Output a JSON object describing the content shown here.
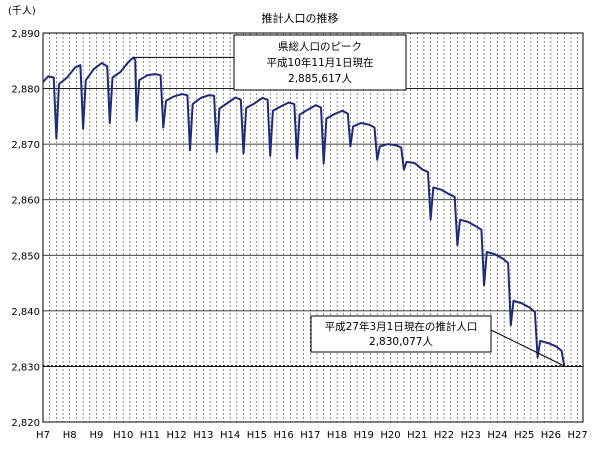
{
  "chart_data": {
    "type": "line",
    "title": "推計人口の推移",
    "ylabel": "(千人)",
    "xlabel": "",
    "ylim": [
      2820,
      2890
    ],
    "yticks": [
      2820,
      2830,
      2840,
      2850,
      2860,
      2870,
      2880,
      2890
    ],
    "ytick_labels": [
      "2,820",
      "2,830",
      "2,840",
      "2,850",
      "2,860",
      "2,870",
      "2,880",
      "2,890"
    ],
    "xtick_labels": [
      "H7",
      "H8",
      "H9",
      "H10",
      "H11",
      "H12",
      "H13",
      "H14",
      "H15",
      "H16",
      "H17",
      "H18",
      "H19",
      "H20",
      "H21",
      "H22",
      "H23",
      "H24",
      "H25",
      "H26",
      "H27"
    ],
    "grid": true,
    "line_color": "#1f2a7a",
    "reference_line": {
      "value": 2830.077,
      "style": "dotted"
    },
    "series": [
      {
        "name": "",
        "points": [
          [
            7.0,
            2881.2
          ],
          [
            7.2,
            2882.2
          ],
          [
            7.4,
            2882.0
          ],
          [
            7.5,
            2871.0
          ],
          [
            7.6,
            2880.8
          ],
          [
            7.9,
            2882.0
          ],
          [
            8.2,
            2883.8
          ],
          [
            8.4,
            2884.2
          ],
          [
            8.5,
            2872.8
          ],
          [
            8.6,
            2881.5
          ],
          [
            8.9,
            2883.5
          ],
          [
            9.2,
            2884.6
          ],
          [
            9.4,
            2884.0
          ],
          [
            9.5,
            2873.8
          ],
          [
            9.6,
            2882.0
          ],
          [
            9.9,
            2883.0
          ],
          [
            10.2,
            2884.8
          ],
          [
            10.38,
            2885.6
          ],
          [
            10.45,
            2885.2
          ],
          [
            10.5,
            2874.2
          ],
          [
            10.6,
            2881.5
          ],
          [
            10.9,
            2882.4
          ],
          [
            11.2,
            2882.6
          ],
          [
            11.4,
            2882.4
          ],
          [
            11.5,
            2873.0
          ],
          [
            11.6,
            2877.8
          ],
          [
            11.9,
            2878.6
          ],
          [
            12.2,
            2879.0
          ],
          [
            12.4,
            2878.8
          ],
          [
            12.5,
            2868.9
          ],
          [
            12.6,
            2877.2
          ],
          [
            12.9,
            2878.3
          ],
          [
            13.2,
            2878.8
          ],
          [
            13.4,
            2878.7
          ],
          [
            13.5,
            2868.6
          ],
          [
            13.6,
            2876.4
          ],
          [
            13.9,
            2877.4
          ],
          [
            14.2,
            2878.4
          ],
          [
            14.4,
            2878.0
          ],
          [
            14.5,
            2868.3
          ],
          [
            14.6,
            2876.5
          ],
          [
            14.9,
            2877.3
          ],
          [
            15.2,
            2878.3
          ],
          [
            15.4,
            2878.0
          ],
          [
            15.5,
            2867.9
          ],
          [
            15.6,
            2876.0
          ],
          [
            15.9,
            2876.8
          ],
          [
            16.2,
            2877.5
          ],
          [
            16.4,
            2877.2
          ],
          [
            16.5,
            2867.4
          ],
          [
            16.6,
            2875.3
          ],
          [
            16.9,
            2876.2
          ],
          [
            17.2,
            2877.0
          ],
          [
            17.4,
            2876.6
          ],
          [
            17.5,
            2866.5
          ],
          [
            17.6,
            2874.6
          ],
          [
            17.9,
            2875.4
          ],
          [
            18.2,
            2876.0
          ],
          [
            18.4,
            2875.5
          ],
          [
            18.5,
            2869.6
          ],
          [
            18.6,
            2873.2
          ],
          [
            18.9,
            2873.8
          ],
          [
            19.2,
            2873.5
          ],
          [
            19.4,
            2873.0
          ],
          [
            19.5,
            2867.2
          ],
          [
            19.6,
            2869.6
          ],
          [
            19.9,
            2870.0
          ],
          [
            20.2,
            2869.8
          ],
          [
            20.4,
            2869.4
          ],
          [
            20.5,
            2865.4
          ],
          [
            20.6,
            2866.8
          ],
          [
            20.9,
            2866.6
          ],
          [
            21.2,
            2865.4
          ],
          [
            21.4,
            2865.0
          ],
          [
            21.5,
            2856.4
          ],
          [
            21.6,
            2862.2
          ],
          [
            21.9,
            2861.8
          ],
          [
            22.2,
            2861.0
          ],
          [
            22.4,
            2860.5
          ],
          [
            22.5,
            2851.8
          ],
          [
            22.6,
            2856.4
          ],
          [
            22.9,
            2856.0
          ],
          [
            23.2,
            2855.2
          ],
          [
            23.4,
            2854.6
          ],
          [
            23.5,
            2844.6
          ],
          [
            23.6,
            2850.6
          ],
          [
            23.9,
            2850.2
          ],
          [
            24.2,
            2849.4
          ],
          [
            24.4,
            2848.6
          ],
          [
            24.5,
            2837.4
          ],
          [
            24.6,
            2841.8
          ],
          [
            24.9,
            2841.4
          ],
          [
            25.2,
            2840.6
          ],
          [
            25.4,
            2839.8
          ],
          [
            25.5,
            2831.6
          ],
          [
            25.6,
            2834.6
          ],
          [
            25.9,
            2834.2
          ],
          [
            26.2,
            2833.6
          ],
          [
            26.4,
            2832.8
          ],
          [
            26.5,
            2830.077
          ]
        ]
      }
    ],
    "annotations": [
      {
        "lines": [
          "県総人口のピーク",
          "平成10年11月1日現在",
          "2,885,617人"
        ],
        "x": 10.38,
        "y": 2885.617
      },
      {
        "lines": [
          "平成27年3月1日現在の推計人口",
          "2,830,077人"
        ],
        "x": 26.5,
        "y": 2830.077
      }
    ]
  }
}
